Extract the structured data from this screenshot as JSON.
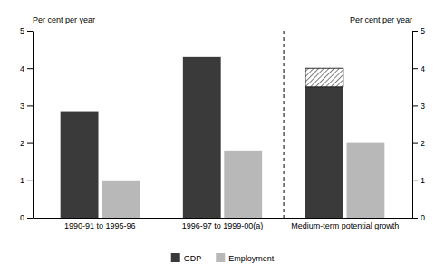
{
  "chart_data": {
    "type": "bar",
    "categories": [
      "1990-91 to 1995-96",
      "1996-97 to 1999-00(a)",
      "Medium-term potential growth"
    ],
    "series": [
      {
        "name": "GDP",
        "color": "#3a3a3a",
        "values": [
          2.85,
          4.3,
          3.5
        ]
      },
      {
        "color": "#ffffff",
        "stacked": true,
        "values": [
          0.0,
          0.0,
          0.5
        ]
      },
      {
        "name": "Employment",
        "color": "#b8b8b8",
        "values": [
          1.0,
          1.8,
          2.0
        ]
      }
    ],
    "ylabel": "Per cent per year",
    "y2label": "Per cent per year",
    "ylim": [
      0,
      5
    ],
    "yticks": [
      0,
      1,
      2,
      3,
      4,
      5
    ],
    "y2lim": [
      0,
      5
    ],
    "y2ticks": [
      0,
      1,
      2,
      3,
      4,
      5
    ],
    "grid": false,
    "legend": "bottom"
  }
}
